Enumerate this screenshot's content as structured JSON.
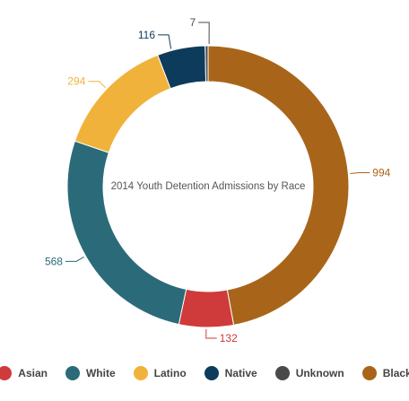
{
  "chart_data": {
    "type": "pie",
    "donut": true,
    "title": "2014 Youth Detention Admissions by Race",
    "slices": [
      {
        "name": "Black",
        "value": 994,
        "color": "#a8651a"
      },
      {
        "name": "Asian",
        "value": 132,
        "color": "#cf3a3a"
      },
      {
        "name": "White",
        "value": 568,
        "color": "#2b6b79"
      },
      {
        "name": "Latino",
        "value": 294,
        "color": "#f0b23a"
      },
      {
        "name": "Native",
        "value": 116,
        "color": "#0d3b5c"
      },
      {
        "name": "Unknown",
        "value": 7,
        "color": "#4a4a4a"
      }
    ],
    "legend": {
      "position": "bottom",
      "order": [
        "Asian",
        "White",
        "Latino",
        "Native",
        "Unknown",
        "Black"
      ]
    }
  }
}
